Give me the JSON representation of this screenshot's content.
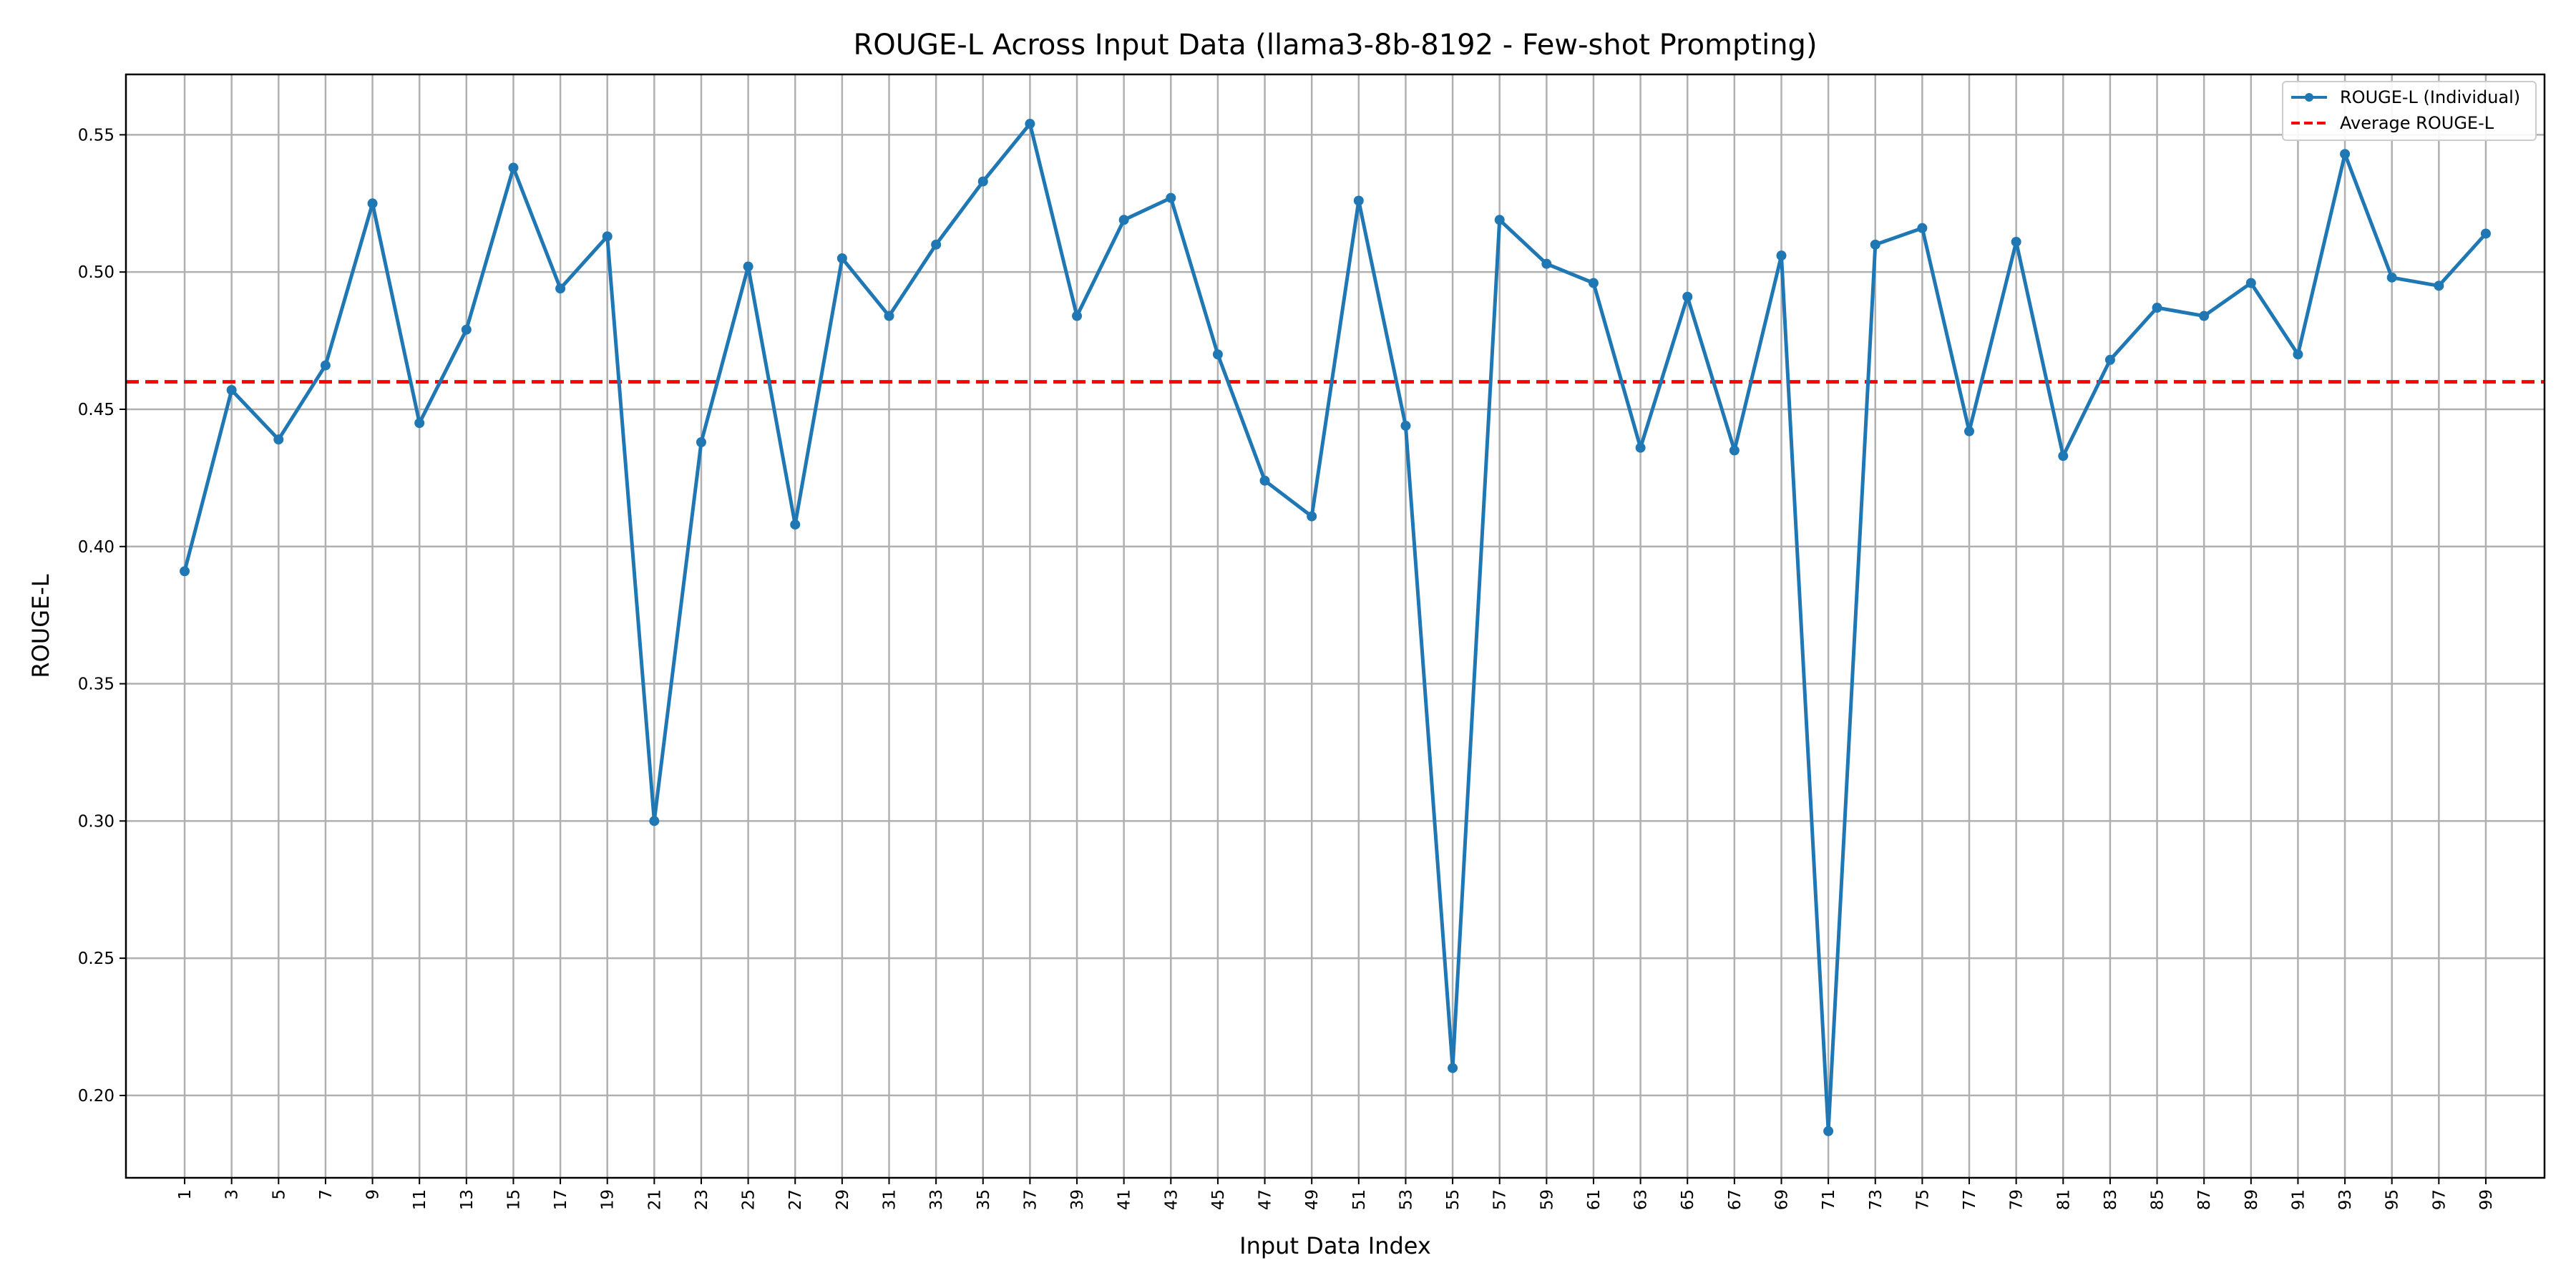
{
  "chart_data": {
    "type": "line",
    "title": "ROUGE-L Across Input Data (llama3-8b-8192 - Few-shot Prompting)",
    "xlabel": "Input Data Index",
    "ylabel": "ROUGE-L",
    "ylim": [
      0.17,
      0.572
    ],
    "xlim": [
      -1.5,
      101.5
    ],
    "grid": true,
    "legend_position": "top-right",
    "x": [
      1,
      3,
      5,
      7,
      9,
      11,
      13,
      15,
      17,
      19,
      21,
      23,
      25,
      27,
      29,
      31,
      33,
      35,
      37,
      39,
      41,
      43,
      45,
      47,
      49,
      51,
      53,
      55,
      57,
      59,
      61,
      63,
      65,
      67,
      69,
      71,
      73,
      75,
      77,
      79,
      81,
      83,
      85,
      87,
      89,
      91,
      93,
      95,
      97,
      99
    ],
    "x_tick_labels": [
      "1",
      "3",
      "5",
      "7",
      "9",
      "11",
      "13",
      "15",
      "17",
      "19",
      "21",
      "23",
      "25",
      "27",
      "29",
      "31",
      "33",
      "35",
      "37",
      "39",
      "41",
      "43",
      "45",
      "47",
      "49",
      "51",
      "53",
      "55",
      "57",
      "59",
      "61",
      "63",
      "65",
      "67",
      "69",
      "71",
      "73",
      "75",
      "77",
      "79",
      "81",
      "83",
      "85",
      "87",
      "89",
      "91",
      "93",
      "95",
      "97",
      "99"
    ],
    "y_ticks": [
      0.2,
      0.25,
      0.3,
      0.35,
      0.4,
      0.45,
      0.5,
      0.55
    ],
    "y_tick_labels": [
      "0.20",
      "0.25",
      "0.30",
      "0.35",
      "0.40",
      "0.45",
      "0.50",
      "0.55"
    ],
    "series": [
      {
        "name": "ROUGE-L (Individual)",
        "color": "#1f77b4",
        "style": "solid-line-with-markers",
        "values": [
          0.391,
          0.457,
          0.439,
          0.466,
          0.525,
          0.445,
          0.479,
          0.538,
          0.494,
          0.513,
          0.3,
          0.438,
          0.502,
          0.408,
          0.505,
          0.484,
          0.51,
          0.533,
          0.554,
          0.484,
          0.519,
          0.527,
          0.47,
          0.424,
          0.411,
          0.526,
          0.444,
          0.21,
          0.519,
          0.503,
          0.496,
          0.436,
          0.491,
          0.435,
          0.506,
          0.187,
          0.51,
          0.516,
          0.442,
          0.511,
          0.433,
          0.468,
          0.487,
          0.484,
          0.496,
          0.47,
          0.543,
          0.498,
          0.495,
          0.514
        ]
      },
      {
        "name": "Average ROUGE-L",
        "color": "#ff0000",
        "style": "dashed-horizontal-line",
        "value": 0.46
      }
    ]
  }
}
